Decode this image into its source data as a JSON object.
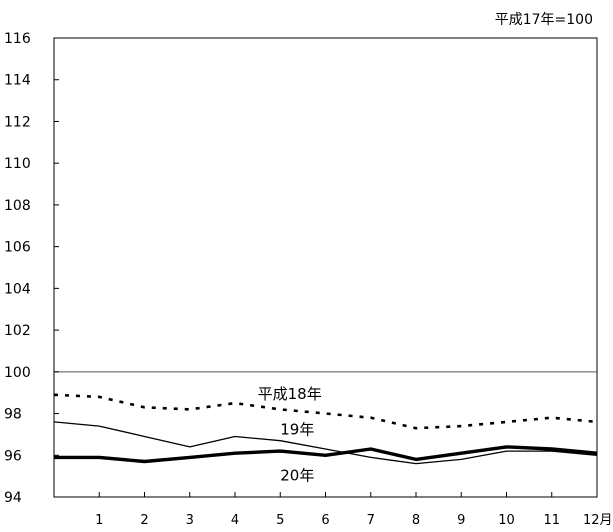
{
  "chart_data": {
    "type": "line",
    "note": "平成17年=100",
    "ylim": [
      94,
      116
    ],
    "yticks": [
      "94",
      "96",
      "98",
      "100",
      "102",
      "104",
      "106",
      "108",
      "110",
      "112",
      "114",
      "116"
    ],
    "x": [
      0,
      1,
      2,
      3,
      4,
      5,
      6,
      7,
      8,
      9,
      10,
      11,
      12
    ],
    "xtick_labels": [
      "1",
      "2",
      "3",
      "4",
      "5",
      "6",
      "7",
      "8",
      "9",
      "10",
      "11",
      "12月"
    ],
    "reference_line": 100,
    "grid": false,
    "series": [
      {
        "name": "平成18年",
        "style": "dotted",
        "color": "#000000",
        "values": [
          98.9,
          98.8,
          98.3,
          98.2,
          98.5,
          98.2,
          98.0,
          97.8,
          97.3,
          97.4,
          97.6,
          97.8,
          97.6
        ]
      },
      {
        "name": "19年",
        "style": "thin",
        "color": "#000000",
        "values": [
          97.6,
          97.4,
          96.9,
          96.4,
          96.9,
          96.7,
          96.3,
          95.9,
          95.6,
          95.8,
          96.2,
          96.2,
          96.0
        ]
      },
      {
        "name": "20年",
        "style": "thick",
        "color": "#000000",
        "values": [
          95.9,
          95.9,
          95.7,
          95.9,
          96.1,
          96.2,
          96.0,
          96.3,
          95.8,
          96.1,
          96.4,
          96.3,
          96.1
        ]
      }
    ]
  }
}
